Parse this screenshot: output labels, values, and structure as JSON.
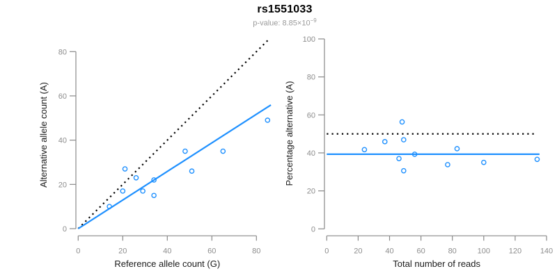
{
  "header": {
    "title": "rs1551033",
    "p_label": "p-value: ",
    "p_base": "8.85×10",
    "p_exponent": "−9"
  },
  "colors": {
    "accent_blue": "#1E90FF",
    "axis_gray": "#888888",
    "tick_label_gray": "#8c8c8c",
    "axis_title_black": "#1a1a1a",
    "dotted_black": "#000000",
    "background": "#ffffff"
  },
  "chart_data": [
    {
      "type": "scatter",
      "name": "allele-counts",
      "xlabel": "Reference allele count (G)",
      "ylabel": "Alternative allele count (A)",
      "xlim": [
        0,
        86.5
      ],
      "ylim": [
        0,
        86
      ],
      "xticks": [
        0,
        20,
        40,
        60,
        80
      ],
      "yticks": [
        0,
        20,
        40,
        60,
        80
      ],
      "grid": false,
      "points": [
        [
          14,
          10
        ],
        [
          20,
          17
        ],
        [
          21,
          27
        ],
        [
          26,
          23
        ],
        [
          29,
          17
        ],
        [
          34,
          15
        ],
        [
          34,
          22
        ],
        [
          48,
          35
        ],
        [
          51,
          26
        ],
        [
          65,
          35
        ],
        [
          85,
          49
        ]
      ],
      "lines": [
        {
          "role": "identity-expected",
          "style": "dotted",
          "color_key": "dotted_black",
          "x1": 0,
          "y1": 0,
          "x2": 86,
          "y2": 86
        },
        {
          "role": "fitted-trend",
          "style": "solid",
          "color_key": "accent_blue",
          "x1": 0,
          "y1": 0,
          "x2": 86.5,
          "y2": 55.9
        }
      ]
    },
    {
      "type": "scatter",
      "name": "percentage-vs-reads",
      "xlabel": "Total number of reads",
      "ylabel": "Percentage alternative (A)",
      "xlim": [
        0,
        140
      ],
      "ylim": [
        0,
        100
      ],
      "xticks": [
        0,
        20,
        40,
        60,
        80,
        100,
        120,
        140
      ],
      "yticks": [
        0,
        20,
        40,
        60,
        80,
        100
      ],
      "grid": false,
      "points": [
        [
          24,
          41.7
        ],
        [
          37,
          45.9
        ],
        [
          46,
          37.0
        ],
        [
          48,
          56.3
        ],
        [
          49,
          46.9
        ],
        [
          49,
          30.6
        ],
        [
          56,
          39.3
        ],
        [
          77,
          33.8
        ],
        [
          83,
          42.2
        ],
        [
          100,
          35.0
        ],
        [
          134,
          36.6
        ]
      ],
      "lines": [
        {
          "role": "expected-fifty-percent",
          "style": "dotted",
          "color_key": "dotted_black",
          "x1": 0,
          "y1": 50,
          "x2": 132.5,
          "y2": 50
        },
        {
          "role": "observed-mean-percentage",
          "style": "solid",
          "color_key": "accent_blue",
          "x1": 0,
          "y1": 39.3,
          "x2": 135.5,
          "y2": 39.3
        }
      ]
    }
  ]
}
